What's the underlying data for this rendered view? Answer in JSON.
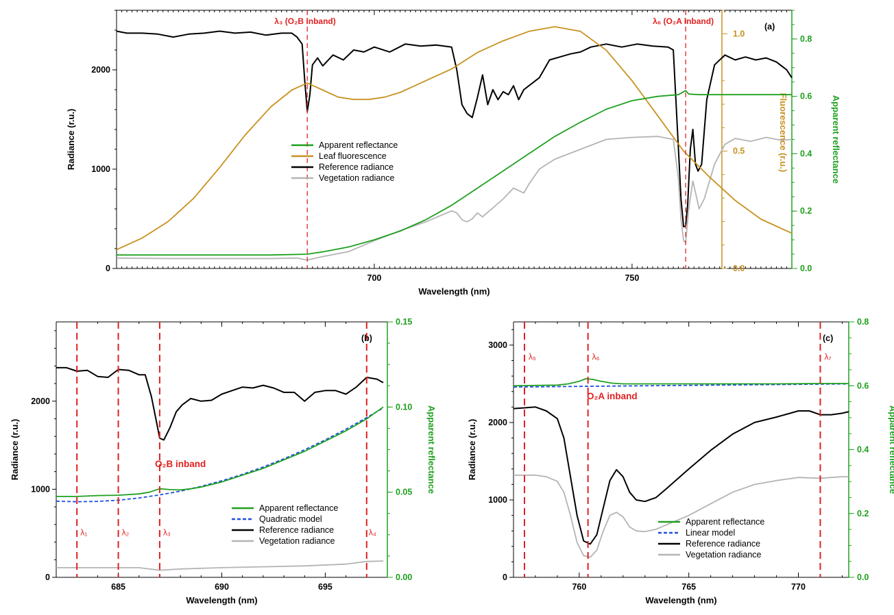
{
  "colors": {
    "reflectance": "#1fa01f",
    "fluorescence": "#c8911f",
    "reference": "#000000",
    "vegetation": "#b4b4b4",
    "model": "#1f4fe0",
    "marker": "#e02020"
  },
  "chart_data": [
    {
      "id": "a",
      "type": "line",
      "panel_label": "(a)",
      "xlabel": "Wavelength (nm)",
      "ylabel": "Radiance (r.u.)",
      "y2label": "Fluorescence (r.u.)",
      "y3label": "Apparent reflectance",
      "xlim": [
        650,
        781
      ],
      "ylim": [
        0,
        2600
      ],
      "y2lim": [
        0,
        1.1
      ],
      "y3lim": [
        0,
        0.9
      ],
      "xticks": [
        "700",
        "750"
      ],
      "yticks": [
        "0",
        "1000",
        "2000"
      ],
      "y2ticks": [
        "0.0",
        "0.5",
        "1.0"
      ],
      "y3ticks": [
        "0.0",
        "0.2",
        "0.4",
        "0.6",
        "0.8"
      ],
      "markers": [
        {
          "x": 687.0,
          "label": "λ₃ (O₂B inband)"
        },
        {
          "x": 760.4,
          "label": "λ₆ (O₂A inband)"
        }
      ],
      "legend": [
        "Apparent reflectance",
        "Leaf fluorescence",
        "Reference radiance",
        "Vegetation radiance"
      ],
      "series": [
        {
          "name": "Reference radiance",
          "axis": "y",
          "color": "reference",
          "x": [
            650,
            652,
            655,
            658,
            661,
            664,
            667,
            670,
            673,
            676,
            679,
            682,
            684,
            685,
            686,
            686.5,
            687,
            687.5,
            688,
            689,
            690,
            692,
            694,
            696,
            698,
            700,
            703,
            706,
            709,
            712,
            715,
            716,
            717,
            718,
            719,
            720,
            721,
            722,
            723,
            724,
            725,
            726,
            727,
            728,
            729,
            730,
            732,
            734,
            736,
            738,
            740,
            742,
            745,
            748,
            751,
            754,
            757,
            758,
            759,
            759.5,
            760,
            760.4,
            760.8,
            761.3,
            761.8,
            762.3,
            762.8,
            763.5,
            764.5,
            766,
            768,
            770,
            772,
            774,
            776,
            778,
            780,
            781
          ],
          "y": [
            2390,
            2370,
            2370,
            2360,
            2330,
            2360,
            2370,
            2390,
            2370,
            2380,
            2350,
            2370,
            2370,
            2330,
            2260,
            1900,
            1580,
            1750,
            2050,
            2120,
            2040,
            2150,
            2100,
            2200,
            2180,
            2230,
            2180,
            2260,
            2240,
            2250,
            2230,
            2000,
            1650,
            1560,
            1520,
            1720,
            1950,
            1650,
            1800,
            1700,
            1780,
            1750,
            1840,
            1700,
            1800,
            1840,
            1920,
            2100,
            2130,
            2160,
            2180,
            2230,
            2260,
            2230,
            2260,
            2240,
            2230,
            2200,
            1200,
            700,
            420,
            430,
            650,
            1200,
            1400,
            1050,
            980,
            1050,
            1700,
            2050,
            2150,
            2100,
            2130,
            2100,
            2120,
            2080,
            2000,
            1920
          ]
        },
        {
          "name": "Vegetation radiance",
          "axis": "y",
          "color": "vegetation",
          "x": [
            650,
            660,
            670,
            680,
            685,
            687,
            690,
            695,
            700,
            705,
            710,
            715,
            716,
            717,
            718,
            719,
            720,
            721,
            725,
            727,
            729,
            730,
            732,
            735,
            740,
            745,
            750,
            755,
            758,
            759,
            759.5,
            760,
            760.4,
            761,
            761.8,
            762.5,
            763,
            764,
            766,
            768,
            770,
            773,
            776,
            779,
            781
          ],
          "y": [
            105,
            100,
            100,
            100,
            105,
            85,
            120,
            170,
            280,
            380,
            470,
            580,
            560,
            490,
            470,
            500,
            560,
            520,
            700,
            810,
            760,
            850,
            1000,
            1100,
            1200,
            1300,
            1320,
            1330,
            1300,
            900,
            500,
            280,
            260,
            600,
            880,
            720,
            600,
            700,
            1050,
            1250,
            1310,
            1280,
            1320,
            1290,
            1300
          ]
        },
        {
          "name": "Leaf fluorescence",
          "axis": "y2",
          "color": "fluorescence",
          "x": [
            650,
            655,
            660,
            665,
            670,
            675,
            680,
            684,
            687,
            690,
            693,
            696,
            699,
            702,
            705,
            710,
            715,
            720,
            725,
            730,
            735,
            740,
            745,
            750,
            755,
            760,
            765,
            770,
            775,
            780,
            781
          ],
          "y": [
            0.08,
            0.13,
            0.2,
            0.3,
            0.43,
            0.57,
            0.69,
            0.76,
            0.79,
            0.76,
            0.73,
            0.72,
            0.72,
            0.73,
            0.75,
            0.8,
            0.85,
            0.92,
            0.97,
            1.01,
            1.03,
            1.01,
            0.93,
            0.8,
            0.65,
            0.5,
            0.39,
            0.29,
            0.21,
            0.16,
            0.15
          ]
        },
        {
          "name": "Apparent reflectance",
          "axis": "y3",
          "color": "reflectance",
          "x": [
            650,
            660,
            670,
            680,
            687,
            690,
            695,
            700,
            705,
            710,
            715,
            720,
            725,
            730,
            735,
            740,
            745,
            750,
            755,
            759,
            760.4,
            761,
            763,
            766,
            770,
            775,
            781
          ],
          "y": [
            0.047,
            0.047,
            0.047,
            0.047,
            0.05,
            0.058,
            0.075,
            0.1,
            0.13,
            0.17,
            0.22,
            0.28,
            0.34,
            0.4,
            0.46,
            0.51,
            0.555,
            0.585,
            0.6,
            0.606,
            0.62,
            0.608,
            0.606,
            0.606,
            0.606,
            0.606,
            0.606
          ]
        }
      ]
    },
    {
      "id": "b",
      "type": "line",
      "panel_label": "(b)",
      "xlabel": "Wavelength (nm)",
      "ylabel": "Radiance (r.u.)",
      "y2label": "Apparent reflectance",
      "xlim": [
        682,
        698
      ],
      "ylim": [
        0,
        2900
      ],
      "y2lim": [
        0,
        0.15
      ],
      "xticks": [
        "685",
        "690",
        "695"
      ],
      "yticks": [
        "0",
        "1000",
        "2000"
      ],
      "y2ticks": [
        "0.00",
        "0.05",
        "0.10",
        "0.15"
      ],
      "markers": [
        {
          "x": 683,
          "label": "λ₁"
        },
        {
          "x": 685,
          "label": "λ₂"
        },
        {
          "x": 687,
          "label": "λ₃"
        },
        {
          "x": 697,
          "label": "λ₄"
        }
      ],
      "annotation": "O₂B inband",
      "legend": [
        "Apparent reflectance",
        "Quadratic model",
        "Reference radiance",
        "Vegetation radiance"
      ],
      "series": [
        {
          "name": "Reference radiance",
          "axis": "y",
          "color": "reference",
          "x": [
            682,
            682.5,
            683,
            683.5,
            684,
            684.5,
            685,
            685.5,
            686,
            686.3,
            686.6,
            686.9,
            687,
            687.2,
            687.5,
            687.8,
            688.1,
            688.5,
            689,
            689.5,
            690,
            690.5,
            691,
            691.5,
            692,
            692.5,
            693,
            693.5,
            694,
            694.5,
            695,
            695.5,
            696,
            696.5,
            697,
            697.5,
            697.8
          ],
          "y": [
            2380,
            2380,
            2340,
            2350,
            2280,
            2270,
            2360,
            2350,
            2300,
            2300,
            2050,
            1700,
            1580,
            1560,
            1700,
            1880,
            1960,
            2030,
            2000,
            2010,
            2080,
            2120,
            2160,
            2150,
            2180,
            2150,
            2100,
            2100,
            2000,
            2100,
            2120,
            2120,
            2080,
            2160,
            2270,
            2250,
            2210
          ]
        },
        {
          "name": "Vegetation radiance",
          "axis": "y",
          "color": "vegetation",
          "x": [
            682,
            684,
            686,
            687,
            688,
            690,
            692,
            694,
            696,
            697,
            697.8
          ],
          "y": [
            110,
            110,
            110,
            80,
            95,
            110,
            120,
            130,
            150,
            180,
            185
          ]
        },
        {
          "name": "Quadratic model",
          "axis": "y2",
          "color": "model",
          "dashed": true,
          "x": [
            682,
            683,
            684,
            685,
            686,
            687,
            688,
            689,
            690,
            691,
            692,
            693,
            694,
            695,
            696,
            697,
            697.8
          ],
          "y": [
            0.0447,
            0.0444,
            0.0446,
            0.0453,
            0.0466,
            0.0484,
            0.0506,
            0.0534,
            0.0567,
            0.0605,
            0.0648,
            0.0696,
            0.0749,
            0.0807,
            0.087,
            0.0938,
            0.0995
          ]
        },
        {
          "name": "Apparent reflectance",
          "axis": "y2",
          "color": "reflectance",
          "x": [
            682,
            683,
            684,
            685,
            686,
            686.5,
            687,
            687.5,
            688,
            688.5,
            689,
            690,
            691,
            692,
            693,
            694,
            695,
            696,
            697,
            697.8
          ],
          "y": [
            0.0475,
            0.0475,
            0.048,
            0.0482,
            0.049,
            0.05,
            0.052,
            0.0515,
            0.0513,
            0.052,
            0.053,
            0.056,
            0.06,
            0.064,
            0.069,
            0.074,
            0.08,
            0.086,
            0.093,
            0.1
          ]
        }
      ]
    },
    {
      "id": "c",
      "type": "line",
      "panel_label": "(c)",
      "xlabel": "Wavelength (nm)",
      "ylabel": "Radiance (r.u.)",
      "y2label": "Apparent reflectance",
      "xlim": [
        757,
        772.3
      ],
      "ylim": [
        0,
        3300
      ],
      "y2lim": [
        0,
        0.8
      ],
      "xticks": [
        "760",
        "765",
        "770"
      ],
      "yticks": [
        "0",
        "1000",
        "2000",
        "3000"
      ],
      "y2ticks": [
        "0.0",
        "0.2",
        "0.4",
        "0.6",
        "0.8"
      ],
      "markers": [
        {
          "x": 757.5,
          "label": "λ₅"
        },
        {
          "x": 760.4,
          "label": "λ₆"
        },
        {
          "x": 771.0,
          "label": "λ₇"
        }
      ],
      "annotation": "O₂A inband",
      "legend": [
        "Apparent reflectance",
        "Linear model",
        "Reference radiance",
        "Vegetation radiance"
      ],
      "series": [
        {
          "name": "Reference radiance",
          "axis": "y",
          "color": "reference",
          "x": [
            757,
            757.5,
            758,
            758.5,
            759,
            759.3,
            759.6,
            759.9,
            760.2,
            760.5,
            760.8,
            761.1,
            761.4,
            761.7,
            762,
            762.3,
            762.6,
            763,
            763.5,
            764,
            765,
            766,
            767,
            768,
            769,
            770,
            770.5,
            771,
            771.5,
            772,
            772.3
          ],
          "y": [
            2180,
            2190,
            2200,
            2150,
            2050,
            1800,
            1300,
            800,
            470,
            430,
            550,
            900,
            1250,
            1390,
            1300,
            1100,
            1000,
            980,
            1030,
            1150,
            1400,
            1640,
            1850,
            2000,
            2070,
            2150,
            2150,
            2100,
            2100,
            2120,
            2140
          ]
        },
        {
          "name": "Vegetation radiance",
          "axis": "y",
          "color": "vegetation",
          "x": [
            757,
            758,
            758.5,
            759,
            759.3,
            759.6,
            759.9,
            760.2,
            760.5,
            760.8,
            761.1,
            761.4,
            761.7,
            762,
            762.3,
            762.6,
            763,
            763.5,
            764,
            765,
            766,
            767,
            768,
            769,
            770,
            771,
            771.5,
            772,
            772.3
          ],
          "y": [
            1320,
            1320,
            1300,
            1240,
            1100,
            800,
            450,
            280,
            260,
            350,
            600,
            800,
            840,
            780,
            650,
            600,
            590,
            620,
            680,
            800,
            950,
            1100,
            1200,
            1250,
            1290,
            1280,
            1290,
            1300,
            1300
          ]
        },
        {
          "name": "Linear model",
          "axis": "y2",
          "color": "model",
          "dashed": true,
          "x": [
            757,
            772.3
          ],
          "y": [
            0.596,
            0.606
          ]
        },
        {
          "name": "Apparent reflectance",
          "axis": "y2",
          "color": "reflectance",
          "x": [
            757,
            758,
            759,
            759.5,
            760,
            760.3,
            760.6,
            761,
            761.5,
            762,
            763,
            765,
            767,
            769,
            771,
            772.3
          ],
          "y": [
            0.6,
            0.601,
            0.602,
            0.606,
            0.614,
            0.622,
            0.62,
            0.614,
            0.608,
            0.606,
            0.606,
            0.606,
            0.606,
            0.606,
            0.607,
            0.607
          ]
        }
      ]
    }
  ]
}
